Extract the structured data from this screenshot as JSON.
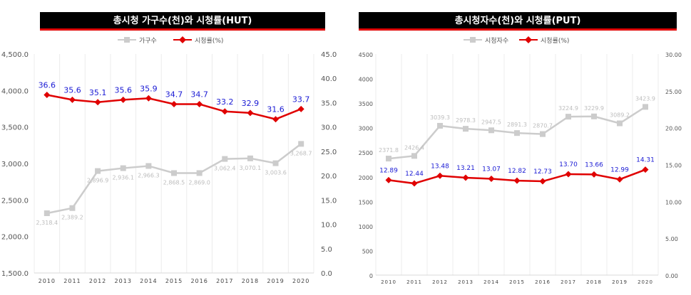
{
  "colors": {
    "households": "#cccccc",
    "rating": "#e00000",
    "label_rating": "#1a1ad4",
    "label_households": "#bdbdbd",
    "grid": "#ececec",
    "axis_text": "#555555"
  },
  "chart_data": [
    {
      "type": "line",
      "title": "총시청 가구수(천)와 시청률(HUT)",
      "categories": [
        "2010",
        "2011",
        "2012",
        "2013",
        "2014",
        "2015",
        "2016",
        "2017",
        "2018",
        "2019",
        "2020"
      ],
      "series": [
        {
          "name": "가구수",
          "axis": "left",
          "values": [
            2318.4,
            2389.2,
            2896.9,
            2936.1,
            2966.3,
            2868.5,
            2869.0,
            3062.4,
            3070.1,
            3003.6,
            3268.7
          ],
          "labels": [
            "2,318.4",
            "2,389.2",
            "2,896.9",
            "2,936.1",
            "2,966.3",
            "2,868.5",
            "2,869.0",
            "3,062.4",
            "3,070.1",
            "3,003.6",
            "3,268.7"
          ]
        },
        {
          "name": "시청률(%)",
          "axis": "right",
          "values": [
            36.6,
            35.6,
            35.1,
            35.6,
            35.9,
            34.7,
            34.7,
            33.2,
            32.9,
            31.6,
            33.7
          ],
          "labels": [
            "36.6",
            "35.6",
            "35.1",
            "35.6",
            "35.9",
            "34.7",
            "34.7",
            "33.2",
            "32.9",
            "31.6",
            "33.7"
          ]
        }
      ],
      "ylim_left": [
        1500,
        4500
      ],
      "yticks_left": [
        "1,500.0",
        "2,000.0",
        "2,500.0",
        "3,000.0",
        "3,500.0",
        "4,000.0",
        "4,500.0"
      ],
      "ylim_right": [
        0,
        45
      ],
      "yticks_right": [
        "0.0",
        "5.0",
        "10.0",
        "15.0",
        "20.0",
        "25.0",
        "30.0",
        "35.0",
        "40.0",
        "45.0"
      ],
      "legend_position": "top-center",
      "grid": "vertical"
    },
    {
      "type": "line",
      "title": "총시청자수(천)와 시청률(PUT)",
      "categories": [
        "2010",
        "2011",
        "2012",
        "2013",
        "2014",
        "2015",
        "2016",
        "2017",
        "2018",
        "2019",
        "2020"
      ],
      "series": [
        {
          "name": "시청자수",
          "axis": "left",
          "values": [
            2371.8,
            2426.4,
            3039.3,
            2978.3,
            2947.5,
            2891.3,
            2870.7,
            3224.9,
            3229.9,
            3089.2,
            3423.9
          ],
          "labels": [
            "2371.8",
            "2426.4",
            "3039.3",
            "2978.3",
            "2947.5",
            "2891.3",
            "2870.7",
            "3224.9",
            "3229.9",
            "3089.2",
            "3423.9"
          ]
        },
        {
          "name": "시청률(%)",
          "axis": "right",
          "values": [
            12.89,
            12.44,
            13.48,
            13.21,
            13.07,
            12.82,
            12.73,
            13.7,
            13.66,
            12.99,
            14.31
          ],
          "labels": [
            "12.89",
            "12.44",
            "13.48",
            "13.21",
            "13.07",
            "12.82",
            "12.73",
            "13.70",
            "13.66",
            "12.99",
            "14.31"
          ]
        }
      ],
      "ylim_left": [
        0,
        4500
      ],
      "yticks_left": [
        "0",
        "500",
        "1000",
        "1500",
        "2000",
        "2500",
        "3000",
        "3500",
        "4000",
        "4500"
      ],
      "ylim_right": [
        0,
        30
      ],
      "yticks_right": [
        "0.00",
        "5.00",
        "10.00",
        "15.00",
        "20.00",
        "25.00",
        "30.00"
      ],
      "legend_position": "top-center",
      "grid": "vertical"
    }
  ]
}
